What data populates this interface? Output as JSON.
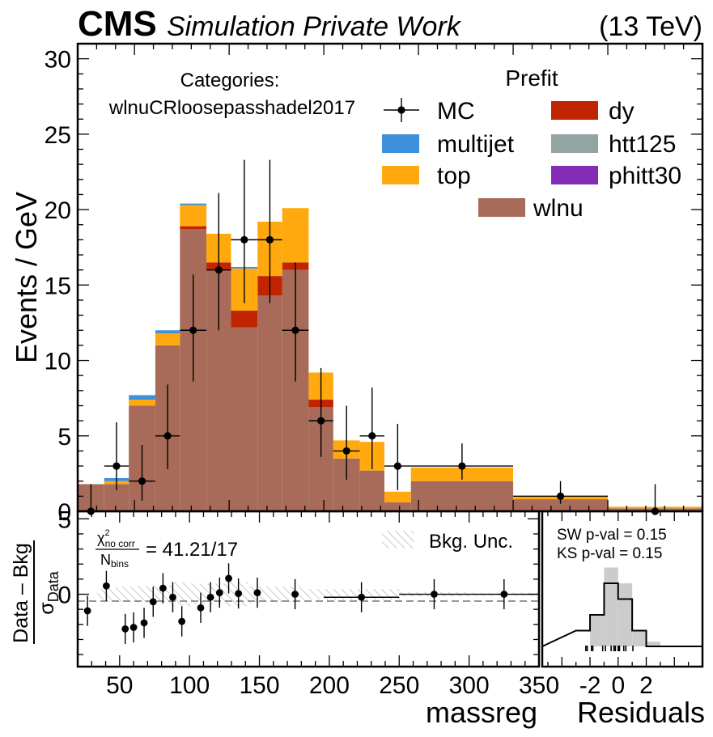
{
  "header": {
    "cms": "CMS",
    "subtitle": "Simulation Private Work",
    "energy": "(13 TeV)"
  },
  "category": {
    "label": "Categories:",
    "name": "wlnuCRloosepasshadel2017"
  },
  "legend": {
    "title": "Prefit",
    "entries": [
      {
        "label": "MC",
        "kind": "data"
      },
      {
        "label": "dy",
        "kind": "fill",
        "color": "#c12401"
      },
      {
        "label": "multijet",
        "kind": "fill",
        "color": "#3f90da"
      },
      {
        "label": "htt125",
        "kind": "fill",
        "color": "#94a4a2"
      },
      {
        "label": "top",
        "kind": "fill",
        "color": "#ffa90e"
      },
      {
        "label": "phitt30",
        "kind": "fill",
        "color": "#832db6"
      },
      {
        "label": "wlnu",
        "kind": "fill",
        "color": "#a96b59"
      }
    ]
  },
  "ratio_panel": {
    "ylabel_num": "Data – Bkg",
    "ylabel_den": "σ",
    "ylabel_den_sub": "Data",
    "chi2_sym": "χ",
    "chi2_sup": "2",
    "chi2_sub": "no corr",
    "chi2_den": "N",
    "chi2_den_sub": "bins",
    "chi2_value": "= 41.21/17",
    "unc_label": "Bkg. Unc."
  },
  "residual_panel": {
    "sw_text": "SW p-val = 0.15",
    "ks_text": "KS p-val = 0.15",
    "xlabel": "Residuals"
  },
  "colors": {
    "data": "#000000",
    "hatch": "#bbbbbb",
    "residual_hist": "#cccccc"
  },
  "chart_data": [
    {
      "type": "bar",
      "stacked": true,
      "title": "",
      "xlabel": "massreg",
      "ylabel": "Events / GeV",
      "xlim": [
        20,
        350
      ],
      "ylim": [
        0,
        31
      ],
      "xticks": [
        50,
        100,
        150,
        200,
        250,
        300,
        350
      ],
      "yticks": [
        0,
        5,
        10,
        15,
        20,
        25,
        30
      ],
      "bin_edges": [
        20,
        34,
        47,
        61,
        74,
        88,
        101,
        115,
        128,
        142,
        155,
        169,
        182,
        196,
        250,
        300,
        350
      ],
      "series": [
        {
          "name": "wlnu",
          "color": "#a96b59",
          "values": [
            1.8,
            1.8,
            7.0,
            11.0,
            18.7,
            16.0,
            12.2,
            14.3,
            16.0,
            6.9,
            3.5,
            2.7,
            0.6,
            2.0,
            0.8,
            0.2
          ]
        },
        {
          "name": "dy",
          "color": "#c12401",
          "values": [
            0.0,
            0.0,
            0.0,
            0.0,
            0.2,
            0.5,
            1.1,
            1.3,
            0.5,
            0.5,
            0.0,
            0.0,
            0.0,
            0.0,
            0.0,
            0.0
          ]
        },
        {
          "name": "top",
          "color": "#ffa90e",
          "values": [
            0.0,
            0.2,
            0.4,
            0.8,
            1.4,
            1.9,
            2.8,
            3.6,
            3.6,
            1.8,
            1.2,
            1.9,
            0.7,
            0.9,
            0.2,
            0.1
          ]
        },
        {
          "name": "multijet",
          "color": "#3f90da",
          "values": [
            0.0,
            0.2,
            0.3,
            0.2,
            0.1,
            0.0,
            0.1,
            0.0,
            0.0,
            0.0,
            0.0,
            0.0,
            0.0,
            0.0,
            0.0,
            0.0
          ]
        },
        {
          "name": "htt125",
          "color": "#94a4a2",
          "values": [
            0.0,
            0.0,
            0.0,
            0.0,
            0.0,
            0.0,
            0.0,
            0.0,
            0.0,
            0.0,
            0.0,
            0.0,
            0.0,
            0.0,
            0.0,
            0.0
          ]
        },
        {
          "name": "phitt30",
          "color": "#832db6",
          "values": [
            0.0,
            0.0,
            0.0,
            0.0,
            0.0,
            0.0,
            0.0,
            0.0,
            0.0,
            0.0,
            0.0,
            0.0,
            0.0,
            0.0,
            0.0,
            0.0
          ]
        }
      ],
      "data_points": {
        "name": "MC",
        "x": [
          27,
          40.5,
          54,
          67.5,
          81,
          94.5,
          108,
          121.5,
          135,
          148.5,
          162,
          175.5,
          189,
          223,
          275,
          325
        ],
        "y": [
          0,
          3,
          2,
          5,
          12,
          16,
          18,
          18,
          12,
          6,
          4,
          5,
          3,
          3,
          1,
          0
        ],
        "yerr_up": [
          1.8,
          2.9,
          2.4,
          3.4,
          3.7,
          5.1,
          5.3,
          5.3,
          4.5,
          3.5,
          3.0,
          3.2,
          2.8,
          1.5,
          1.0,
          1.8
        ],
        "yerr_down": [
          0,
          1.6,
          1.3,
          2.2,
          3.4,
          4.0,
          4.2,
          4.2,
          3.4,
          2.4,
          1.9,
          2.2,
          1.6,
          0.9,
          0.5,
          0
        ]
      }
    },
    {
      "type": "scatter",
      "xlabel": "massreg",
      "ylim": [
        -4.8,
        5.5
      ],
      "yticks": [
        0,
        5
      ],
      "x": [
        27,
        40.5,
        54,
        60,
        67.5,
        74,
        81,
        88,
        94.5,
        108,
        115,
        121.5,
        128,
        135,
        148.5,
        175.5,
        223,
        275,
        325
      ],
      "y": [
        -1.1,
        0.55,
        -2.3,
        -2.2,
        -1.9,
        -0.5,
        0.4,
        -0.2,
        -1.8,
        -0.9,
        -0.2,
        0.1,
        1.05,
        0.05,
        0.1,
        0.0,
        -0.2,
        0.0,
        0.0
      ],
      "yerr": [
        1.0,
        1.0,
        1.0,
        1.0,
        1.0,
        1.0,
        1.0,
        1.0,
        1.0,
        1.0,
        1.0,
        1.0,
        1.0,
        1.0,
        1.0,
        1.0,
        1.0,
        1.0,
        1.0
      ],
      "reference_line": 0
    },
    {
      "type": "bar",
      "xlabel": "Residuals",
      "xticks": [
        -2,
        0,
        2
      ],
      "xlim": [
        -5.4,
        6.0
      ],
      "bin_edges": [
        -3,
        -2,
        -1,
        0,
        1,
        2,
        3
      ],
      "outline_counts": [
        1,
        2,
        4,
        3,
        1,
        0
      ],
      "filled_counts": [
        0,
        2,
        5,
        4,
        1,
        0.3
      ],
      "rug": [
        -2.3,
        -2.2,
        -1.9,
        -1.8,
        -1.1,
        -0.9,
        -0.5,
        -0.3,
        -0.2,
        -0.2,
        0.0,
        0.0,
        0.05,
        0.1,
        0.4,
        0.55,
        1.05
      ]
    }
  ]
}
